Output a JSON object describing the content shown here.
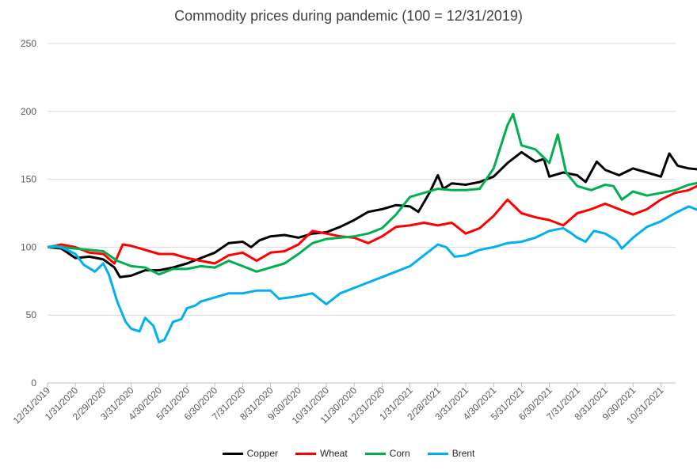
{
  "chart_data": {
    "type": "line",
    "title": "Commodity prices during pandemic (100 = 12/31/2019)",
    "xlabel": "",
    "ylabel": "",
    "ylim": [
      0,
      250
    ],
    "yticks": [
      0,
      50,
      100,
      150,
      200,
      250
    ],
    "grid": true,
    "legend_position": "bottom",
    "x_tick_labels": [
      "12/31/2019",
      "1/31/2020",
      "2/29/2020",
      "3/31/2020",
      "4/30/2020",
      "5/31/2020",
      "6/30/2020",
      "7/31/2020",
      "8/31/2020",
      "9/30/2020",
      "10/31/2020",
      "11/30/2020",
      "12/31/2020",
      "1/31/2021",
      "2/28/2021",
      "3/31/2021",
      "4/30/2021",
      "5/31/2021",
      "6/30/2021",
      "7/31/2021",
      "8/31/2021",
      "9/30/2021",
      "10/31/2021"
    ],
    "x_end_month_fraction": 23.9,
    "series": [
      {
        "name": "Copper",
        "color": "#000000",
        "points": [
          [
            0,
            100
          ],
          [
            0.5,
            99
          ],
          [
            1,
            92
          ],
          [
            1.5,
            93
          ],
          [
            2,
            91
          ],
          [
            2.4,
            85
          ],
          [
            2.6,
            78
          ],
          [
            3,
            79
          ],
          [
            3.5,
            83
          ],
          [
            4,
            83
          ],
          [
            4.5,
            85
          ],
          [
            5,
            88
          ],
          [
            5.5,
            92
          ],
          [
            6,
            96
          ],
          [
            6.5,
            103
          ],
          [
            7,
            104
          ],
          [
            7.3,
            100
          ],
          [
            7.6,
            105
          ],
          [
            8,
            108
          ],
          [
            8.5,
            109
          ],
          [
            9,
            107
          ],
          [
            9.5,
            110
          ],
          [
            10,
            111
          ],
          [
            10.5,
            115
          ],
          [
            11,
            120
          ],
          [
            11.5,
            126
          ],
          [
            12,
            128
          ],
          [
            12.5,
            131
          ],
          [
            13,
            130
          ],
          [
            13.3,
            126
          ],
          [
            13.7,
            140
          ],
          [
            14,
            153
          ],
          [
            14.2,
            143
          ],
          [
            14.5,
            147
          ],
          [
            15,
            146
          ],
          [
            15.5,
            148
          ],
          [
            16,
            152
          ],
          [
            16.5,
            162
          ],
          [
            17,
            170
          ],
          [
            17.5,
            163
          ],
          [
            17.8,
            165
          ],
          [
            18,
            152
          ],
          [
            18.5,
            155
          ],
          [
            19,
            153
          ],
          [
            19.3,
            148
          ],
          [
            19.7,
            163
          ],
          [
            20,
            157
          ],
          [
            20.5,
            153
          ],
          [
            21,
            158
          ],
          [
            21.5,
            155
          ],
          [
            22,
            152
          ],
          [
            22.3,
            169
          ],
          [
            22.6,
            160
          ],
          [
            23,
            158
          ],
          [
            23.5,
            157
          ],
          [
            23.8,
            160
          ],
          [
            23.9,
            155
          ]
        ]
      },
      {
        "name": "Wheat",
        "color": "#ff0000",
        "points": [
          [
            0,
            100
          ],
          [
            0.5,
            102
          ],
          [
            1,
            100
          ],
          [
            1.5,
            96
          ],
          [
            2,
            95
          ],
          [
            2.4,
            88
          ],
          [
            2.7,
            102
          ],
          [
            3,
            101
          ],
          [
            3.5,
            98
          ],
          [
            4,
            95
          ],
          [
            4.5,
            95
          ],
          [
            5,
            92
          ],
          [
            5.5,
            90
          ],
          [
            6,
            88
          ],
          [
            6.5,
            94
          ],
          [
            7,
            96
          ],
          [
            7.5,
            90
          ],
          [
            8,
            96
          ],
          [
            8.5,
            97
          ],
          [
            9,
            102
          ],
          [
            9.5,
            112
          ],
          [
            10,
            110
          ],
          [
            10.5,
            108
          ],
          [
            11,
            107
          ],
          [
            11.5,
            103
          ],
          [
            12,
            108
          ],
          [
            12.5,
            115
          ],
          [
            13,
            116
          ],
          [
            13.5,
            118
          ],
          [
            14,
            116
          ],
          [
            14.5,
            118
          ],
          [
            15,
            110
          ],
          [
            15.5,
            114
          ],
          [
            16,
            123
          ],
          [
            16.5,
            135
          ],
          [
            17,
            125
          ],
          [
            17.5,
            122
          ],
          [
            18,
            120
          ],
          [
            18.5,
            116
          ],
          [
            19,
            125
          ],
          [
            19.5,
            128
          ],
          [
            20,
            132
          ],
          [
            20.5,
            128
          ],
          [
            21,
            124
          ],
          [
            21.5,
            128
          ],
          [
            22,
            135
          ],
          [
            22.5,
            140
          ],
          [
            23,
            142
          ],
          [
            23.5,
            147
          ],
          [
            23.9,
            152
          ]
        ]
      },
      {
        "name": "Corn",
        "color": "#00b050",
        "points": [
          [
            0,
            100
          ],
          [
            0.5,
            100
          ],
          [
            1,
            99
          ],
          [
            1.5,
            98
          ],
          [
            2,
            97
          ],
          [
            2.5,
            90
          ],
          [
            3,
            86
          ],
          [
            3.5,
            85
          ],
          [
            4,
            80
          ],
          [
            4.5,
            84
          ],
          [
            5,
            84
          ],
          [
            5.5,
            86
          ],
          [
            6,
            85
          ],
          [
            6.5,
            90
          ],
          [
            7,
            86
          ],
          [
            7.5,
            82
          ],
          [
            8,
            85
          ],
          [
            8.5,
            88
          ],
          [
            9,
            95
          ],
          [
            9.5,
            103
          ],
          [
            10,
            106
          ],
          [
            10.5,
            107
          ],
          [
            11,
            108
          ],
          [
            11.5,
            110
          ],
          [
            12,
            114
          ],
          [
            12.5,
            124
          ],
          [
            13,
            137
          ],
          [
            13.5,
            140
          ],
          [
            14,
            143
          ],
          [
            14.5,
            142
          ],
          [
            15,
            142
          ],
          [
            15.5,
            143
          ],
          [
            16,
            158
          ],
          [
            16.5,
            190
          ],
          [
            16.7,
            198
          ],
          [
            17,
            175
          ],
          [
            17.5,
            172
          ],
          [
            18,
            162
          ],
          [
            18.3,
            183
          ],
          [
            18.6,
            155
          ],
          [
            19,
            145
          ],
          [
            19.5,
            142
          ],
          [
            20,
            146
          ],
          [
            20.3,
            145
          ],
          [
            20.6,
            135
          ],
          [
            21,
            141
          ],
          [
            21.5,
            138
          ],
          [
            22,
            140
          ],
          [
            22.5,
            142
          ],
          [
            23,
            146
          ],
          [
            23.5,
            148
          ],
          [
            23.9,
            150
          ]
        ]
      },
      {
        "name": "Brent",
        "color": "#00b0f0",
        "points": [
          [
            0,
            100
          ],
          [
            0.3,
            101
          ],
          [
            0.6,
            99
          ],
          [
            1,
            95
          ],
          [
            1.3,
            87
          ],
          [
            1.7,
            82
          ],
          [
            2,
            88
          ],
          [
            2.2,
            80
          ],
          [
            2.5,
            60
          ],
          [
            2.8,
            45
          ],
          [
            3,
            40
          ],
          [
            3.3,
            38
          ],
          [
            3.5,
            48
          ],
          [
            3.8,
            42
          ],
          [
            4,
            30
          ],
          [
            4.2,
            32
          ],
          [
            4.5,
            45
          ],
          [
            4.8,
            47
          ],
          [
            5,
            55
          ],
          [
            5.3,
            57
          ],
          [
            5.5,
            60
          ],
          [
            6,
            63
          ],
          [
            6.5,
            66
          ],
          [
            7,
            66
          ],
          [
            7.5,
            68
          ],
          [
            8,
            68
          ],
          [
            8.3,
            62
          ],
          [
            8.7,
            63
          ],
          [
            9,
            64
          ],
          [
            9.5,
            66
          ],
          [
            10,
            58
          ],
          [
            10.5,
            66
          ],
          [
            11,
            70
          ],
          [
            11.5,
            74
          ],
          [
            12,
            78
          ],
          [
            12.5,
            82
          ],
          [
            13,
            86
          ],
          [
            13.5,
            94
          ],
          [
            14,
            102
          ],
          [
            14.3,
            100
          ],
          [
            14.6,
            93
          ],
          [
            15,
            94
          ],
          [
            15.5,
            98
          ],
          [
            16,
            100
          ],
          [
            16.5,
            103
          ],
          [
            17,
            104
          ],
          [
            17.5,
            107
          ],
          [
            18,
            112
          ],
          [
            18.5,
            114
          ],
          [
            18.8,
            110
          ],
          [
            19,
            107
          ],
          [
            19.3,
            104
          ],
          [
            19.6,
            112
          ],
          [
            20,
            110
          ],
          [
            20.4,
            105
          ],
          [
            20.6,
            99
          ],
          [
            21,
            107
          ],
          [
            21.5,
            115
          ],
          [
            22,
            119
          ],
          [
            22.5,
            125
          ],
          [
            23,
            130
          ],
          [
            23.5,
            126
          ],
          [
            23.7,
            124
          ],
          [
            23.9,
            118
          ]
        ]
      }
    ]
  }
}
